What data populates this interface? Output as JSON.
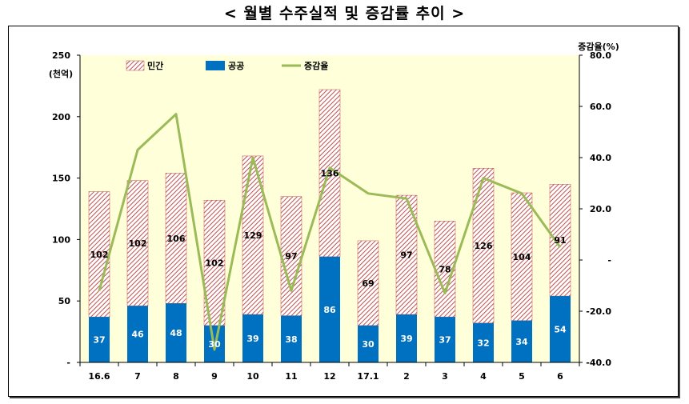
{
  "page": {
    "title": "< 월별 수주실적 및 증감률 추이 >"
  },
  "chart_data": {
    "type": "bar",
    "title": "< 월별 수주실적 및 증감률 추이 >",
    "categories": [
      "16.6",
      "7",
      "8",
      "9",
      "10",
      "11",
      "12",
      "17.1",
      "2",
      "3",
      "4",
      "5",
      "6"
    ],
    "series": [
      {
        "name": "민간",
        "kind": "stacked-bar",
        "color": "#c0504d",
        "pattern": "hatched",
        "values": [
          102,
          102,
          106,
          102,
          129,
          97,
          136,
          69,
          97,
          78,
          126,
          104,
          91
        ]
      },
      {
        "name": "공공",
        "kind": "stacked-bar",
        "color": "#0070c0",
        "values": [
          37,
          46,
          48,
          30,
          39,
          38,
          86,
          30,
          39,
          37,
          32,
          34,
          54
        ]
      },
      {
        "name": "증감율",
        "kind": "line",
        "axis": "right",
        "color": "#9bbb59",
        "values": [
          -12,
          43,
          57,
          -35,
          40,
          -12,
          36,
          26,
          24,
          -13,
          32,
          26,
          5
        ]
      }
    ],
    "ylabel": "(천억)",
    "ylim": [
      0,
      250
    ],
    "yticks": [
      "-",
      "50",
      "100",
      "150",
      "200",
      "250"
    ],
    "y2label": "증감율(%)",
    "y2lim": [
      -40,
      80
    ],
    "y2ticks": [
      "-40.0",
      "-20.0",
      "-",
      "20.0",
      "40.0",
      "60.0",
      "80.0"
    ],
    "legend": [
      "민간",
      "공공",
      "증감율"
    ],
    "legend_position": "top",
    "plot_background": "#ffffd9"
  }
}
